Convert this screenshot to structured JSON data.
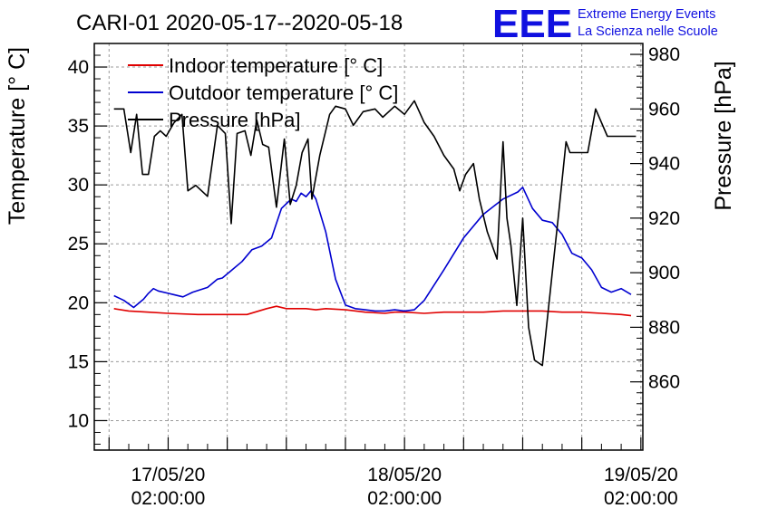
{
  "chart_data": {
    "type": "line",
    "title": "CARI-01 2020-05-17--2020-05-18",
    "logo": {
      "text": "EEE",
      "line1": "Extreme Energy Events",
      "line2": "La Scienza nelle Scuole"
    },
    "x_ticks": [
      {
        "hours": 0,
        "date": "17/05/20",
        "time": "02:00:00"
      },
      {
        "hours": 24,
        "date": "18/05/20",
        "time": "02:00:00"
      },
      {
        "hours": 48,
        "date": "19/05/20",
        "time": "02:00:00"
      }
    ],
    "xlim": [
      -7.5,
      48.2
    ],
    "ylabel_left": "Temperature [° C]",
    "ylabel_right": "Pressure [hPa]",
    "ylim_left": [
      7.5,
      42
    ],
    "ylim_right": [
      835,
      984
    ],
    "yticks_left": [
      10,
      15,
      20,
      25,
      30,
      35,
      40
    ],
    "yticks_right": [
      860,
      880,
      900,
      920,
      940,
      960,
      980
    ],
    "grid": true,
    "legend": "top-left",
    "series": [
      {
        "name": "Indoor temperature [° C]",
        "axis": "left",
        "color": "#e00000",
        "x": [
          -5.5,
          -4,
          -2,
          0,
          3,
          8,
          10,
          11,
          12,
          14,
          15,
          16,
          18,
          20,
          22,
          23,
          24,
          26,
          28,
          30,
          32,
          34,
          36,
          38,
          40,
          42,
          44,
          46,
          47
        ],
        "y": [
          19.5,
          19.3,
          19.2,
          19.1,
          19.0,
          19.0,
          19.5,
          19.7,
          19.5,
          19.5,
          19.4,
          19.5,
          19.4,
          19.2,
          19.1,
          19.2,
          19.2,
          19.1,
          19.2,
          19.2,
          19.2,
          19.3,
          19.3,
          19.3,
          19.2,
          19.2,
          19.1,
          19.0,
          18.9
        ]
      },
      {
        "name": "Outdoor temperature [° C]",
        "axis": "left",
        "color": "#0000d0",
        "x": [
          -5.5,
          -4.5,
          -3.5,
          -2.5,
          -2,
          -1.5,
          -1,
          0,
          0.5,
          1.5,
          2.5,
          4,
          5,
          5.5,
          6.5,
          7.5,
          8.5,
          9.5,
          10.5,
          11.5,
          12,
          12.5,
          13,
          13.5,
          14,
          14.5,
          15,
          16,
          17,
          18,
          19,
          20,
          21,
          22,
          23,
          24,
          25,
          26,
          28,
          30,
          32,
          34,
          35.5,
          36,
          37,
          38,
          39,
          40,
          41,
          42,
          43,
          44,
          45,
          46,
          47
        ],
        "y": [
          20.6,
          20.2,
          19.6,
          20.3,
          20.8,
          21.2,
          21.0,
          20.8,
          20.7,
          20.5,
          20.9,
          21.3,
          22.0,
          22.1,
          22.8,
          23.5,
          24.5,
          24.8,
          25.5,
          28.0,
          28.4,
          28.8,
          28.6,
          29.3,
          29.0,
          29.5,
          28.8,
          26.0,
          22.0,
          19.8,
          19.5,
          19.4,
          19.3,
          19.3,
          19.4,
          19.3,
          19.4,
          20.2,
          22.8,
          25.5,
          27.5,
          28.8,
          29.4,
          29.8,
          28.0,
          27.0,
          26.8,
          25.8,
          24.2,
          23.8,
          22.8,
          21.3,
          20.9,
          21.2,
          20.7
        ]
      },
      {
        "name": "Pressure [hPa]",
        "axis": "right",
        "color": "#000000",
        "x": [
          -5.5,
          -4.5,
          -3.8,
          -3.2,
          -2.6,
          -2.0,
          -1.4,
          -0.8,
          -0.2,
          0.6,
          1.4,
          2.0,
          2.8,
          4.0,
          5.0,
          5.8,
          6.4,
          7.0,
          7.8,
          8.4,
          9.0,
          9.6,
          10.2,
          11.0,
          11.8,
          12.4,
          13.0,
          13.6,
          14.2,
          14.6,
          15.4,
          16.4,
          17.0,
          18.0,
          18.8,
          19.8,
          21.0,
          21.8,
          23.0,
          24.0,
          25.0,
          26.0,
          27.0,
          28.0,
          29.0,
          29.6,
          30.2,
          31.0,
          31.6,
          32.4,
          33.4,
          34.0,
          34.4,
          34.8,
          35.4,
          36.0,
          36.6,
          37.2,
          38.0,
          39.0,
          39.6,
          40.4,
          40.8,
          41.8,
          42.6,
          43.4,
          44.6,
          45.2,
          46.0,
          46.8,
          47.5
        ],
        "y": [
          960,
          960,
          944,
          958,
          936,
          936,
          950,
          952,
          950,
          955,
          958,
          930,
          932,
          928,
          954,
          951,
          918,
          951,
          952,
          943,
          956,
          947,
          946,
          924,
          949,
          925,
          932,
          944,
          949,
          927,
          943,
          958,
          961,
          960,
          954,
          959,
          960,
          957,
          961,
          958,
          963,
          955,
          950,
          943,
          938,
          930,
          936,
          940,
          927,
          915,
          905,
          948,
          920,
          910,
          888,
          920,
          880,
          868,
          866,
          900,
          920,
          948,
          944,
          944,
          944,
          960,
          950,
          950,
          950,
          950,
          950
        ]
      }
    ]
  }
}
